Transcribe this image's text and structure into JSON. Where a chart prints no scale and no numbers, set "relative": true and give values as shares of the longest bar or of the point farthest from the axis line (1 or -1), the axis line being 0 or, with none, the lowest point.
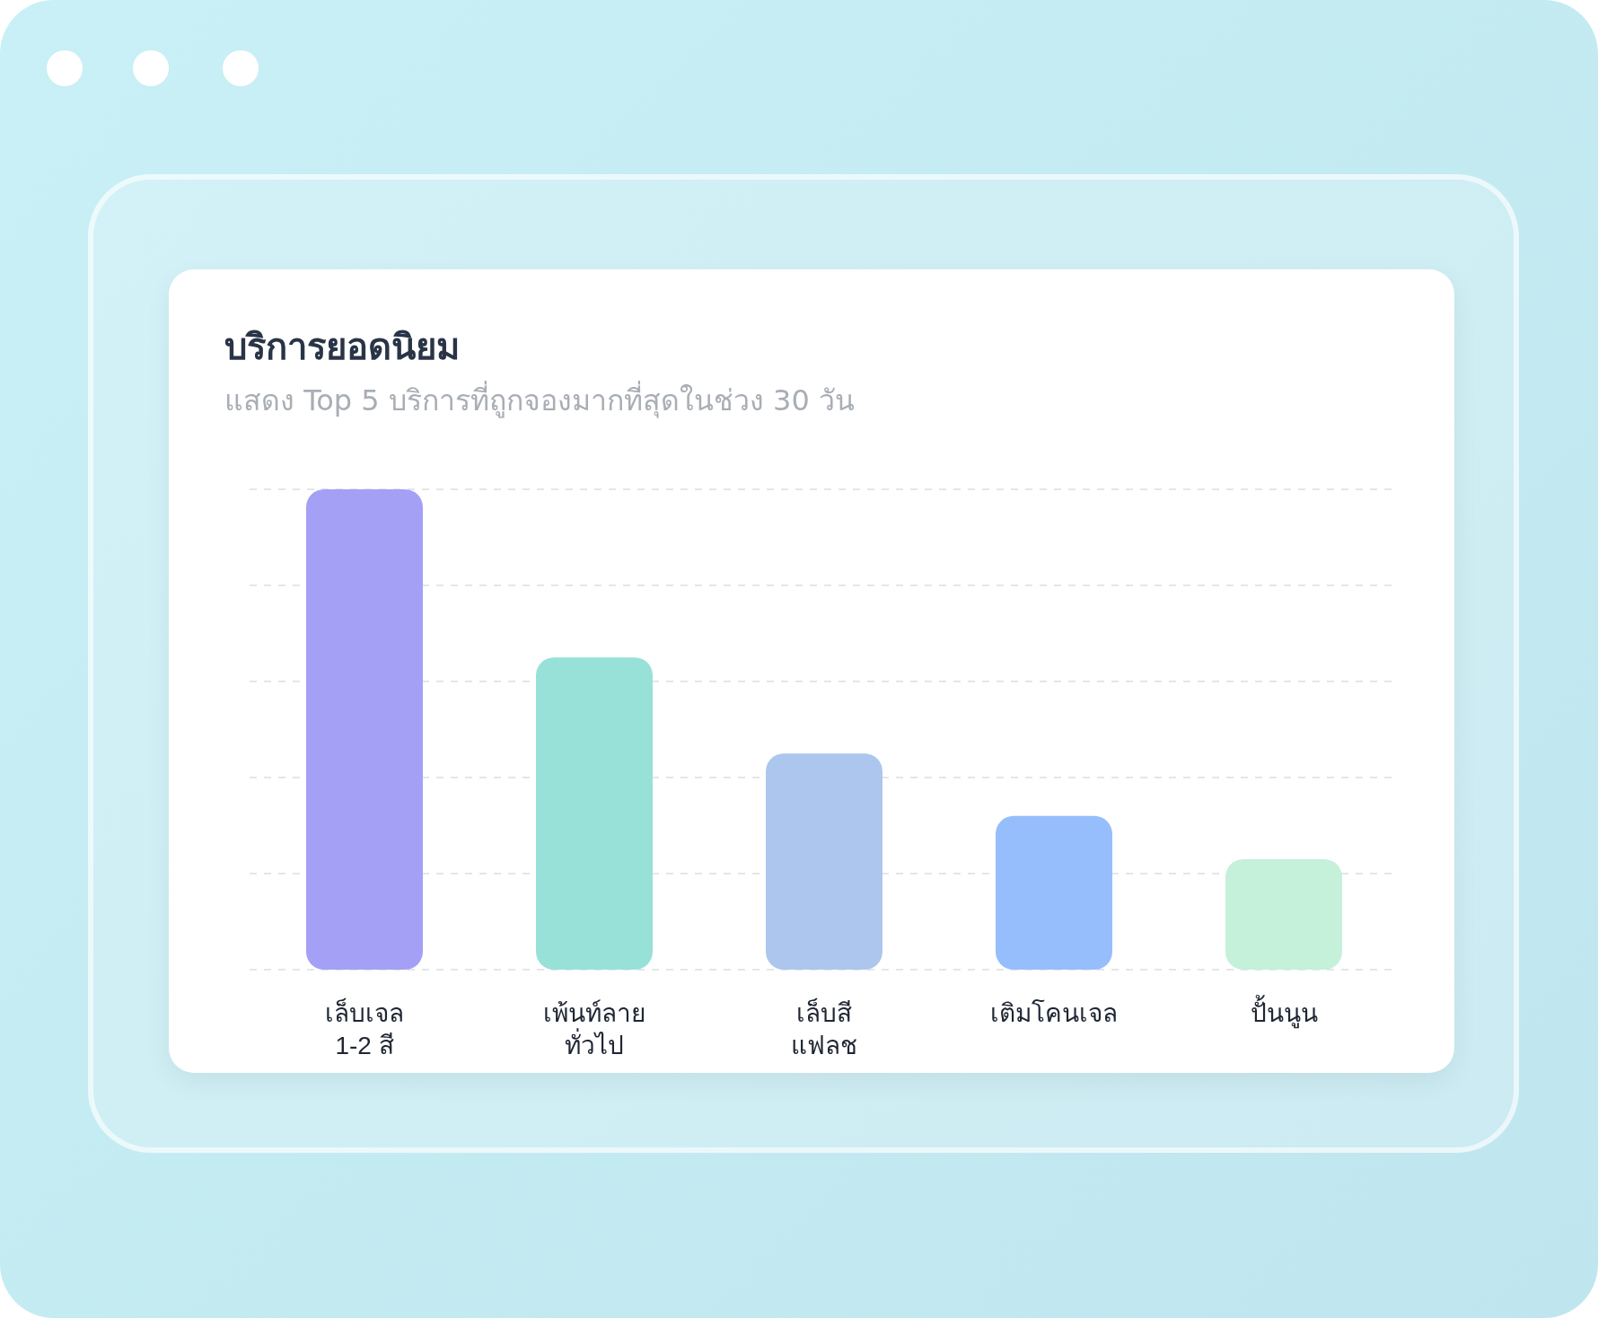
{
  "chart_data": {
    "type": "bar",
    "title": "บริการยอดนิยม",
    "subtitle": "แสดง Top 5 บริการที่ถูกจองมากที่สุดในช่วง 30 วัน",
    "categories": [
      "เล็บเจล\n1-2 สี",
      "เพ้นท์ลาย\nทั่วไป",
      "เล็บสี\nแฟลช",
      "เติมโคนเจล",
      "ปั้นนูน"
    ],
    "values": [
      1,
      0.65,
      0.45,
      0.32,
      0.23
    ],
    "colors": [
      "#a3a0f6",
      "#98e1d8",
      "#adc6ee",
      "#96befc",
      "#c5f0da"
    ],
    "relative": true,
    "grid": "y"
  }
}
